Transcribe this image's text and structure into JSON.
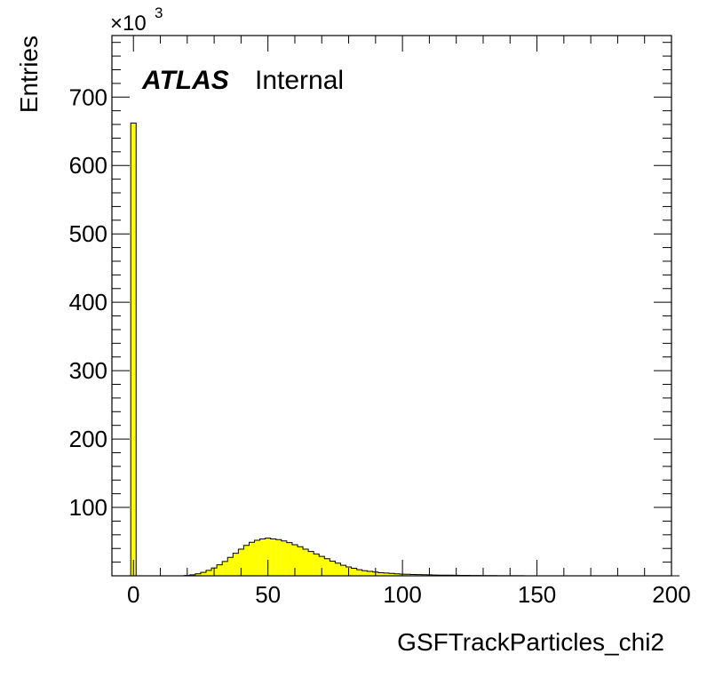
{
  "labels": {
    "experiment": "ATLAS",
    "status": "Internal",
    "multiplier_base": "×10",
    "multiplier_exp": "3"
  },
  "colors": {
    "fill": "#ffff00",
    "line": "#000000"
  },
  "chart_data": {
    "type": "bar",
    "xlabel": "GSFTrackParticles_chi2",
    "ylabel": "Entries",
    "xlim": [
      -8,
      200
    ],
    "ylim": [
      0,
      790
    ],
    "y_unit_multiplier": 1000,
    "xticks": [
      0,
      50,
      100,
      150,
      200
    ],
    "xtick_labels": [
      "0",
      "50",
      "100",
      "150",
      "200"
    ],
    "yticks": [
      100,
      200,
      300,
      400,
      500,
      600,
      700
    ],
    "ytick_labels": [
      "100",
      "200",
      "300",
      "400",
      "500",
      "600",
      "700"
    ],
    "bin_width": 2,
    "bin_start": -1,
    "values": [
      662,
      0,
      0,
      0,
      0,
      0,
      0,
      0,
      0,
      0,
      0.5,
      1.5,
      3,
      5,
      8,
      11.5,
      16,
      21,
      27,
      33,
      39,
      44.5,
      49,
      52,
      54,
      55,
      54,
      53,
      51,
      48.5,
      45.5,
      42.5,
      39,
      35.5,
      32,
      28.5,
      25,
      21.5,
      18.5,
      15.5,
      13,
      11,
      9,
      7.5,
      6.5,
      5.5,
      4.5,
      4,
      3.5,
      3,
      2.5,
      2.3,
      2,
      1.8,
      1.6,
      1.4,
      1.2,
      1,
      1,
      0.9,
      0.8,
      0.7,
      0.6,
      0.5,
      0.5,
      0.4,
      0.3,
      0.3,
      0.2,
      0.2,
      0.1,
      0.1,
      0.1,
      0,
      0,
      0,
      0,
      0,
      0,
      0,
      0,
      0,
      0,
      0,
      0,
      0,
      0,
      0,
      0,
      0,
      0,
      0,
      0,
      0,
      0,
      0,
      0,
      0,
      0,
      0,
      0,
      0
    ],
    "grid": false,
    "legend": "none"
  }
}
